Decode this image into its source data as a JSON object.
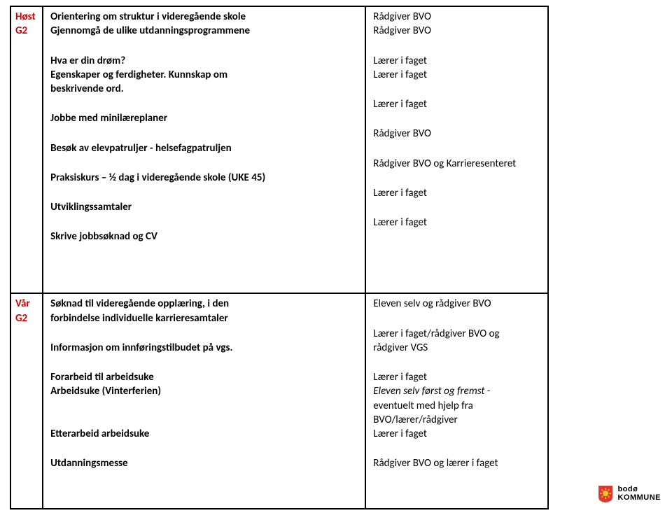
{
  "period1": {
    "season": "Høst",
    "grade": "G2"
  },
  "period2": {
    "season": "Vår",
    "grade": "G2"
  },
  "row1": {
    "activities": [
      {
        "lines": [
          {
            "t": "Orientering om struktur i videregående skole",
            "bold": true
          },
          {
            "t": "Gjennomgå de ulike utdanningsprogrammene",
            "bold": true
          }
        ],
        "resp": [
          {
            "t": "Rådgiver BVO"
          },
          {
            "t": "Rådgiver BVO"
          }
        ]
      },
      {
        "lines": [
          {
            "t": "Hva er din drøm?",
            "bold": true
          },
          {
            "t": "Egenskaper og ferdigheter. Kunnskap om",
            "bold": true
          },
          {
            "t": "beskrivende ord.",
            "bold": true
          }
        ],
        "resp": [
          {
            "t": "Lærer i faget"
          },
          {
            "t": "Lærer i faget"
          }
        ]
      },
      {
        "lines": [
          {
            "t": "Jobbe med minilæreplaner",
            "bold": true
          }
        ],
        "resp": [
          {
            "t": "Lærer i faget"
          }
        ]
      },
      {
        "lines": [
          {
            "t": "Besøk av elevpatruljer - helsefagpatruljen",
            "bold": true
          }
        ],
        "resp": [
          {
            "t": "Rådgiver BVO"
          }
        ]
      },
      {
        "lines": [
          {
            "t": "Praksiskurs – ½ dag i videregående skole (UKE 45)",
            "bold": true
          }
        ],
        "resp": [
          {
            "t": "Rådgiver BVO og Karrieresenteret"
          }
        ]
      },
      {
        "lines": [
          {
            "t": "Utviklingssamtaler",
            "bold": true
          }
        ],
        "resp": [
          {
            "t": "Lærer i faget"
          }
        ]
      },
      {
        "lines": [
          {
            "t": "Skrive jobbsøknad og CV",
            "bold": true
          }
        ],
        "resp": [
          {
            "t": "Lærer i faget"
          }
        ]
      }
    ]
  },
  "row2": {
    "activities": [
      {
        "lines": [
          {
            "t": "Søknad til videregående opplæring, i den",
            "bold": true
          },
          {
            "t": "forbindelse individuelle karrieresamtaler",
            "bold": true
          }
        ],
        "resp": [
          {
            "t": "Eleven selv og rådgiver BVO"
          }
        ]
      },
      {
        "lines": [
          {
            "t": "Informasjon om innføringstilbudet på vgs.",
            "bold": true
          }
        ],
        "resp": [
          {
            "t": "Lærer i faget/rådgiver BVO og"
          },
          {
            "t": "rådgiver VGS"
          }
        ]
      },
      {
        "lines": [
          {
            "t": "Forarbeid til arbeidsuke",
            "bold": true
          },
          {
            "t": "Arbeidsuke (Vinterferien)",
            "bold": true
          },
          {
            "t": "",
            "bold": false
          },
          {
            "t": "",
            "bold": false
          },
          {
            "t": "Etterarbeid arbeidsuke",
            "bold": true
          }
        ],
        "resp": [
          {
            "t": "Lærer i faget"
          },
          {
            "t": "Eleven selv først og fremst -",
            "italic": true
          },
          {
            "t": "eventuelt med hjelp fra"
          },
          {
            "t": "BVO/lærer/rådgiver"
          },
          {
            "t": "Lærer i faget"
          }
        ]
      },
      {
        "lines": [
          {
            "t": "Utdanningsmesse",
            "bold": true
          }
        ],
        "resp": [
          {
            "t": "Rådgiver BVO og lærer i faget"
          }
        ]
      }
    ]
  },
  "logo": {
    "text1": "bodø",
    "text2": "KOMMUNE",
    "shield_bg": "#dc3a2e",
    "shield_sun": "#f4c430"
  }
}
